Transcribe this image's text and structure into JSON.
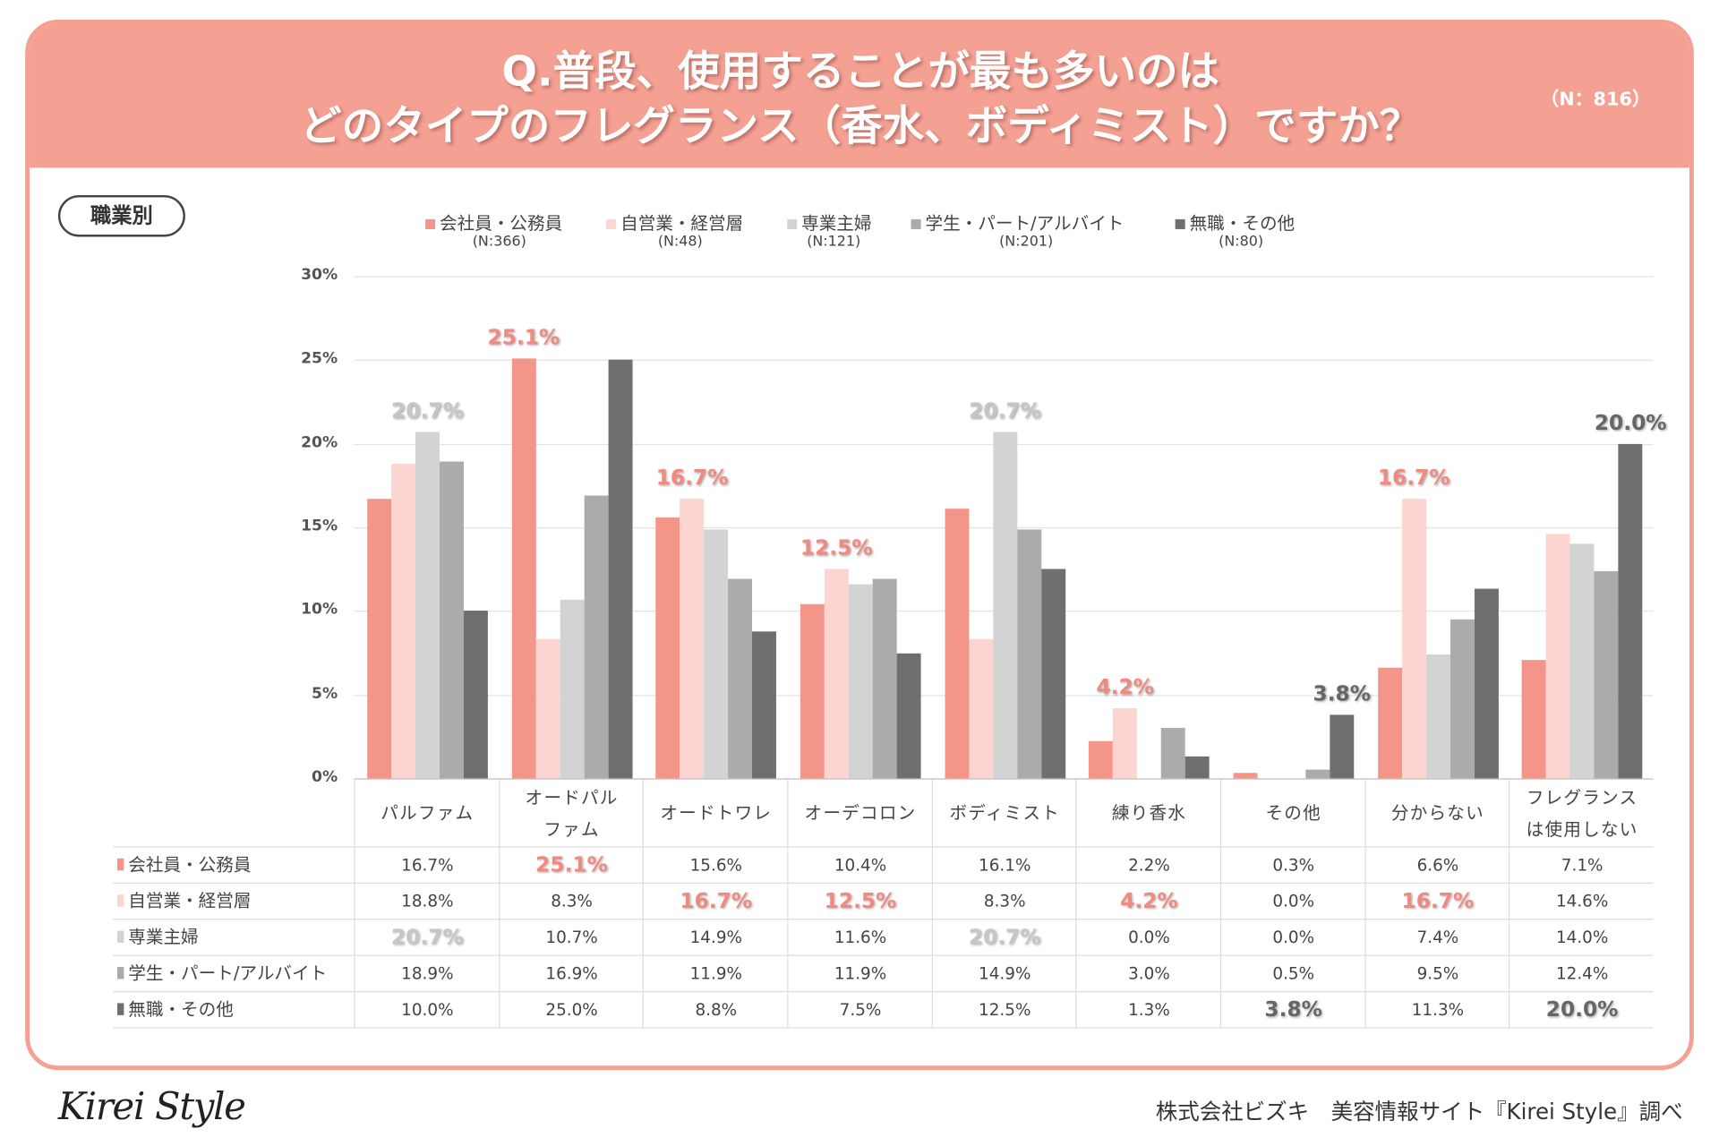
{
  "header": {
    "title_line1": "Q.普段、使用することが最も多いのは",
    "title_line2": "どのタイプのフレグランス（香水、ボディミスト）ですか？",
    "sample": "（N：816）",
    "band_color": "#F4A093"
  },
  "segment_label": "職業別",
  "footer": {
    "logo": "Kirei Style",
    "credit": "株式会社ビズキ　美容情報サイト『Kirei Style』調べ"
  },
  "chart_data": {
    "type": "bar",
    "ylim": [
      0,
      30
    ],
    "yticks": [
      "0%",
      "5%",
      "10%",
      "15%",
      "20%",
      "25%",
      "30%"
    ],
    "grid": true,
    "legend_position": "top",
    "categories": [
      "パルファム",
      "オードパルファム",
      "オードトワレ",
      "オーデコロン",
      "ボディミスト",
      "練り香水",
      "その他",
      "分からない",
      "フレグランスは使用しない"
    ],
    "category_lines": [
      [
        "パルファム"
      ],
      [
        "オードパル",
        "ファム"
      ],
      [
        "オードトワレ"
      ],
      [
        "オーデコロン"
      ],
      [
        "ボディミスト"
      ],
      [
        "練り香水"
      ],
      [
        "その他"
      ],
      [
        "分からない"
      ],
      [
        "フレグランス",
        "は使用しない"
      ]
    ],
    "series": [
      {
        "name": "会社員・公務員",
        "n": "(N:366)",
        "color": "#F4958A",
        "text_color": "#F08A80",
        "values": [
          16.7,
          25.1,
          15.6,
          10.4,
          16.1,
          2.2,
          0.3,
          6.6,
          7.1
        ]
      },
      {
        "name": "自営業・経営層",
        "n": "(N:48)",
        "color": "#FDD5D0",
        "text_color": "#F08A80",
        "values": [
          18.8,
          8.3,
          16.7,
          12.5,
          8.3,
          4.2,
          0.0,
          16.7,
          14.6
        ]
      },
      {
        "name": "専業主婦",
        "n": "(N:121)",
        "color": "#D3D3D3",
        "text_color": "#C6C6C6",
        "values": [
          20.7,
          10.7,
          14.9,
          11.6,
          20.7,
          0.0,
          0.0,
          7.4,
          14.0
        ]
      },
      {
        "name": "学生・パート/アルバイト",
        "n": "(N:201)",
        "color": "#ABABAB",
        "text_color": "#888888",
        "values": [
          18.9,
          16.9,
          11.9,
          11.9,
          14.9,
          3.0,
          0.5,
          9.5,
          12.4
        ]
      },
      {
        "name": "無職・その他",
        "n": "(N:80)",
        "color": "#6F6F6F",
        "text_color": "#666666",
        "values": [
          10.0,
          25.0,
          8.8,
          7.5,
          12.5,
          1.3,
          3.8,
          11.3,
          20.0
        ]
      }
    ],
    "highlights": [
      {
        "category": 0,
        "series": 2,
        "label": "20.7%"
      },
      {
        "category": 1,
        "series": 0,
        "label": "25.1%"
      },
      {
        "category": 2,
        "series": 1,
        "label": "16.7%"
      },
      {
        "category": 3,
        "series": 1,
        "label": "12.5%"
      },
      {
        "category": 4,
        "series": 2,
        "label": "20.7%"
      },
      {
        "category": 5,
        "series": 1,
        "label": "4.2%"
      },
      {
        "category": 6,
        "series": 4,
        "label": "3.8%"
      },
      {
        "category": 7,
        "series": 1,
        "label": "16.7%"
      },
      {
        "category": 8,
        "series": 4,
        "label": "20.0%"
      }
    ]
  }
}
